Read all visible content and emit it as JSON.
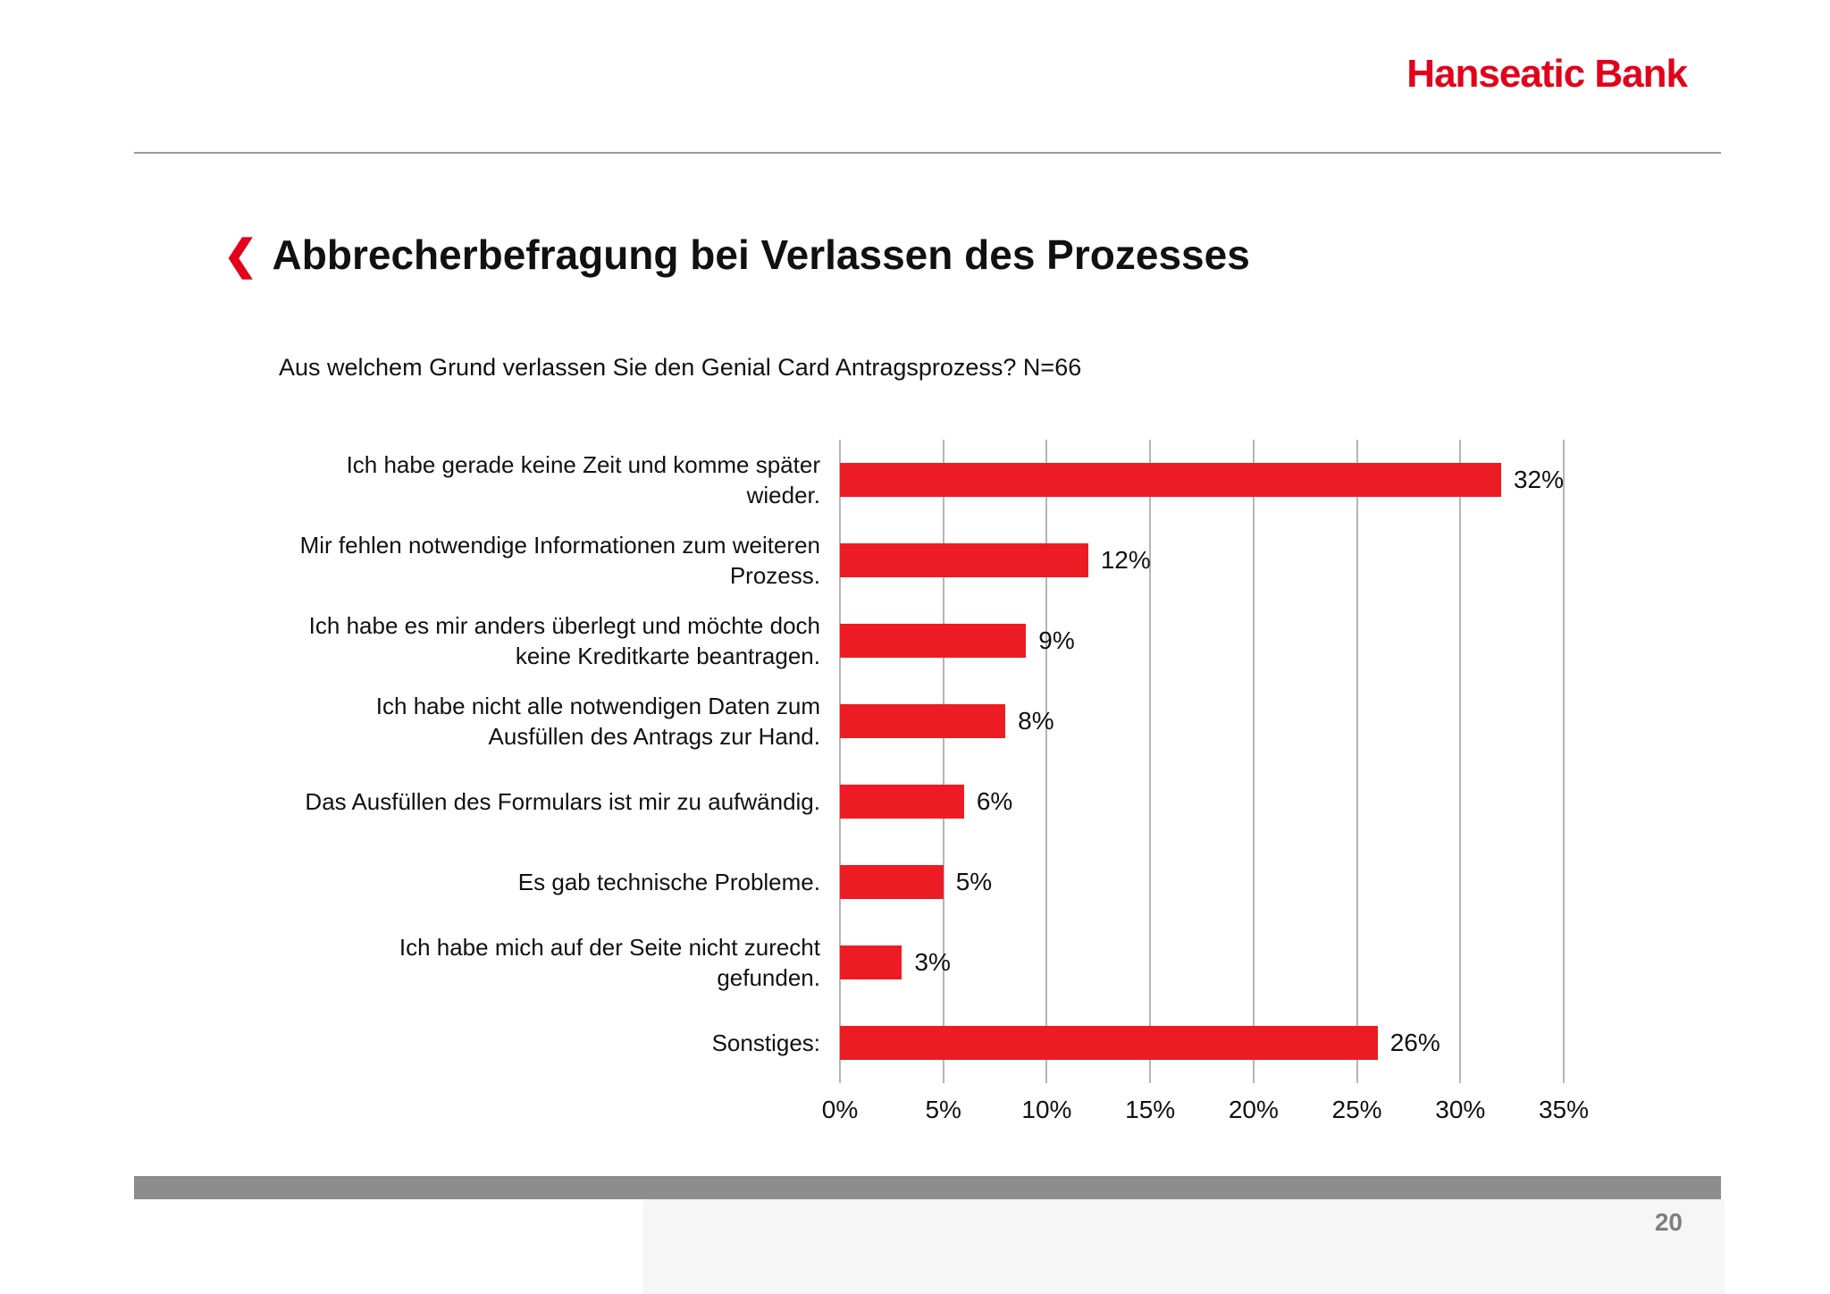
{
  "page": {
    "logo_text": "Hanseatic Bank",
    "page_number": "20"
  },
  "slide": {
    "title_marker": "❮",
    "title": "Abbrecherbefragung bei Verlassen des Prozesses",
    "subtitle": "Aus welchem Grund verlassen Sie den Genial Card Antragsprozess? N=66"
  },
  "colors": {
    "accent_red": "#e2001a",
    "bar_red": "#ed1c24",
    "gridline": "#b5b5b5",
    "footer_bar": "#8d8d8d",
    "page_number_gray": "#7f7f7f"
  },
  "chart_data": {
    "type": "bar",
    "orientation": "horizontal",
    "title": "Abbrecherbefragung bei Verlassen des Prozesses",
    "subtitle": "Aus welchem Grund verlassen Sie den Genial Card Antragsprozess? N=66",
    "categories": [
      "Ich habe gerade keine Zeit und komme später wieder.",
      "Mir fehlen notwendige Informationen zum weiteren Prozess.",
      "Ich habe es mir anders überlegt und möchte doch keine Kreditkarte beantragen.",
      "Ich habe nicht alle notwendigen Daten zum Ausfüllen des Antrags zur Hand.",
      "Das Ausfüllen des Formulars ist mir zu aufwändig.",
      "Es gab technische Probleme.",
      "Ich habe mich auf der Seite nicht zurecht gefunden.",
      "Sonstiges:"
    ],
    "values": [
      32,
      12,
      9,
      8,
      6,
      5,
      3,
      26
    ],
    "value_labels": [
      "32%",
      "12%",
      "9%",
      "8%",
      "6%",
      "5%",
      "3%",
      "26%"
    ],
    "x_ticks": [
      "0%",
      "5%",
      "10%",
      "15%",
      "20%",
      "25%",
      "30%",
      "35%"
    ],
    "xlim": [
      0,
      35
    ],
    "grid": "vertical",
    "legend": "none",
    "bar_color": "#ed1c24",
    "n": 66
  }
}
